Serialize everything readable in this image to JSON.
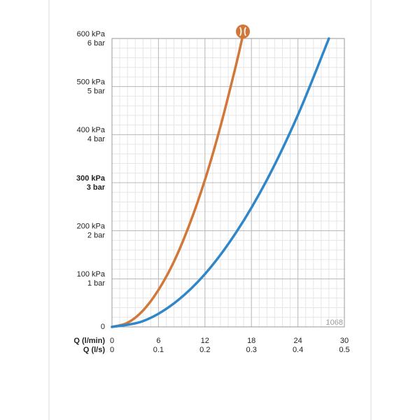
{
  "chart_data": {
    "type": "line",
    "xlabel": "Q (l/min)",
    "x2label": "Q (l/s)",
    "xlim": [
      0,
      30
    ],
    "xticks": [
      0,
      6,
      12,
      18,
      24,
      30
    ],
    "x2lim": [
      0,
      0.5
    ],
    "x2ticks": [
      0,
      0.1,
      0.2,
      0.3,
      0.4,
      0.5
    ],
    "ylim": [
      0,
      600
    ],
    "yticks": [
      0,
      {
        "value": 100,
        "label": "100 kPa"
      },
      {
        "value": 200,
        "label": "200 kPa"
      },
      {
        "value": 300,
        "label": "300 kPa"
      },
      {
        "value": 400,
        "label": "400 kPa"
      },
      {
        "value": 500,
        "label": "500 kPa"
      },
      {
        "value": 600,
        "label": "600 kPa"
      }
    ],
    "y2lim": [
      0,
      6
    ],
    "y2ticks": [
      {
        "value": 1,
        "label": "1 bar"
      },
      {
        "value": 2,
        "label": "2 bar"
      },
      {
        "value": 3,
        "label": "3 bar"
      },
      {
        "value": 4,
        "label": "4 bar"
      },
      {
        "value": 5,
        "label": "5 bar"
      },
      {
        "value": 6,
        "label": "6 bar"
      }
    ],
    "grid": true,
    "minor_xstep": 1,
    "minor_ystep": 20,
    "annotation": "1068",
    "series": [
      {
        "color": "#d2773a",
        "x": [
          0,
          2,
          4,
          6,
          8,
          10,
          12,
          14,
          16,
          16.8
        ],
        "values": [
          0,
          8.5,
          34,
          77,
          136,
          213,
          306,
          417,
          544,
          600
        ]
      },
      {
        "color": "#2f86c8",
        "x": [
          0,
          4,
          8,
          12,
          16,
          20,
          24,
          28
        ],
        "values": [
          0,
          12,
          49,
          110,
          196,
          306,
          441,
          600
        ]
      }
    ]
  }
}
